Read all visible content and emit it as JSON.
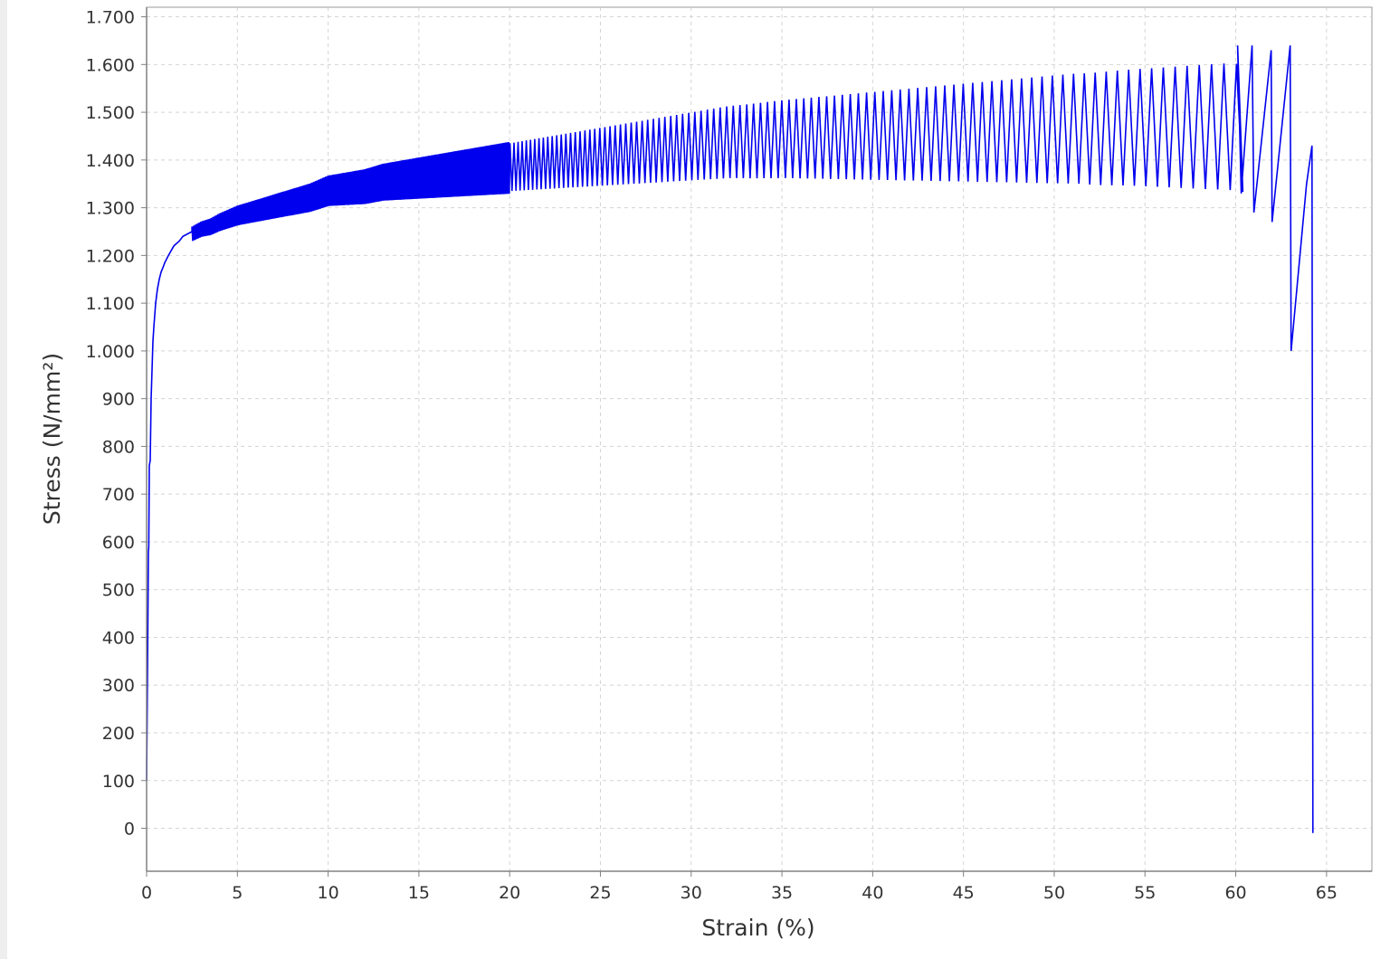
{
  "chart_data": {
    "type": "line",
    "title": "",
    "xlabel": "Strain (%)",
    "ylabel": "Stress (N/mm²)",
    "xlim": [
      0,
      67.5
    ],
    "ylim": [
      -90,
      1720
    ],
    "xticks": [
      0,
      5,
      10,
      15,
      20,
      25,
      30,
      35,
      40,
      45,
      50,
      55,
      60,
      65
    ],
    "xtick_labels": [
      "0",
      "5",
      "10",
      "15",
      "20",
      "25",
      "30",
      "35",
      "40",
      "45",
      "50",
      "55",
      "60",
      "65"
    ],
    "yticks": [
      0,
      100,
      200,
      300,
      400,
      500,
      600,
      700,
      800,
      900,
      1000,
      1100,
      1200,
      1300,
      1400,
      1500,
      1600,
      1700
    ],
    "ytick_labels": [
      "0",
      "100",
      "200",
      "300",
      "400",
      "500",
      "600",
      "700",
      "800",
      "900",
      "1.000",
      "1.100",
      "1.200",
      "1.300",
      "1.400",
      "1.500",
      "1.600",
      "1.700"
    ],
    "grid": true,
    "legend": "none",
    "series_color": "#0000ee",
    "series": [
      {
        "x": [
          0.0,
          0.05,
          0.1,
          0.12,
          0.15,
          0.2,
          0.25,
          0.3,
          0.35,
          0.4,
          0.5,
          0.6,
          0.7,
          0.8,
          0.9,
          1.0,
          1.2,
          1.5,
          1.8,
          2.0,
          2.5,
          3.0,
          3.5,
          4.0,
          5.0,
          6.0,
          7.0,
          8.0,
          9.0,
          10.0,
          11.0,
          12.0,
          13.0,
          14.0,
          15.0,
          16.0,
          17.0,
          18.0,
          19.0,
          20.0,
          21.0,
          22.0,
          23.0,
          24.0,
          25.0,
          26.0,
          27.0,
          28.0,
          29.0,
          30.0,
          31.0,
          32.0,
          33.0,
          34.0,
          35.0,
          36.0,
          37.0,
          38.0,
          39.0,
          40.0,
          41.0,
          42.0,
          43.0,
          44.0,
          45.0,
          46.0,
          47.0,
          48.0,
          49.0,
          50.0,
          51.0,
          52.0,
          53.0,
          54.0,
          55.0,
          56.0,
          57.0,
          58.0,
          59.0,
          60.0,
          60.5,
          61.0,
          61.5,
          62.0,
          62.5,
          63.0,
          63.05,
          63.5,
          64.0,
          64.2,
          64.25
        ],
        "y": [
          100,
          330,
          580,
          590,
          760,
          770,
          900,
          960,
          1020,
          1050,
          1100,
          1130,
          1150,
          1165,
          1175,
          1185,
          1200,
          1220,
          1230,
          1240,
          1250,
          1260,
          1265,
          1275,
          1290,
          1300,
          1310,
          1320,
          1330,
          1345,
          1350,
          1355,
          1365,
          1370,
          1375,
          1380,
          1385,
          1390,
          1395,
          1400,
          1405,
          1410,
          1415,
          1420,
          1425,
          1430,
          1435,
          1440,
          1445,
          1450,
          1455,
          1460,
          1462,
          1465,
          1468,
          1470,
          1472,
          1474,
          1476,
          1478,
          1480,
          1482,
          1484,
          1486,
          1488,
          1490,
          1492,
          1494,
          1496,
          1498,
          1500,
          1500,
          1502,
          1504,
          1505,
          1506,
          1507,
          1508,
          1509,
          1510,
          1480,
          1440,
          1470,
          1420,
          1460,
          1000,
          1020,
          1200,
          1350,
          1430,
          -10
        ]
      }
    ]
  }
}
